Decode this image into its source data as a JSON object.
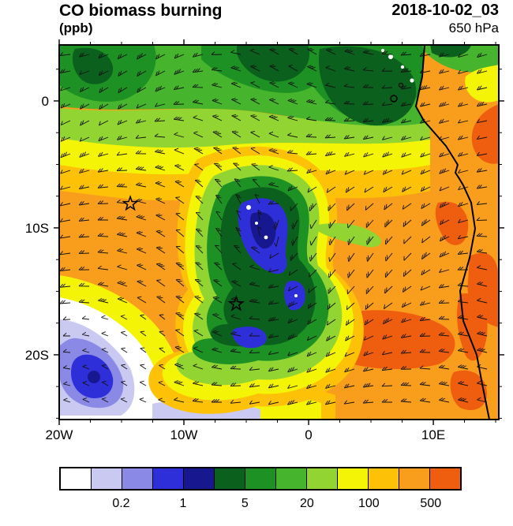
{
  "header": {
    "title": "CO biomass burning",
    "units": "(ppb)",
    "datetime": "2018-10-02_03",
    "level": "650 hPa"
  },
  "axes": {
    "x_ticks": [
      {
        "label": "20W",
        "lon": -20
      },
      {
        "label": "10W",
        "lon": -10
      },
      {
        "label": "0",
        "lon": 0
      },
      {
        "label": "10E",
        "lon": 10
      }
    ],
    "y_ticks": [
      {
        "label": "0",
        "lat": 0
      },
      {
        "label": "10S",
        "lat": -10
      },
      {
        "label": "20S",
        "lat": -20
      }
    ]
  },
  "colorbar": {
    "colors": [
      "#ffffff",
      "#c9c9f2",
      "#8a8ae6",
      "#2f2fd9",
      "#17178f",
      "#0b601d",
      "#1d9124",
      "#46b42c",
      "#92d532",
      "#f4f407",
      "#fdc108",
      "#f99d1c",
      "#ef5e0f"
    ],
    "labels": [
      "0.2",
      "1",
      "5",
      "20",
      "100",
      "500"
    ],
    "label_boundary_cells": [
      2,
      4,
      6,
      8,
      10,
      12
    ]
  },
  "chart_data": {
    "type": "filled_contour_map",
    "variable": "CO biomass burning",
    "units": "ppb",
    "level": "650 hPa",
    "time": "2018-10-02_03",
    "projection_extent": {
      "lon_min": -20,
      "lon_max": 15.25,
      "lat_min": -25.1,
      "lat_max": 4.41
    },
    "contour_levels": [
      0.1,
      0.2,
      0.5,
      1,
      2,
      5,
      10,
      20,
      50,
      100,
      200,
      500
    ],
    "labeled_levels": [
      0.2,
      1,
      5,
      20,
      100,
      500
    ],
    "palette": [
      "#ffffff",
      "#c9c9f2",
      "#8a8ae6",
      "#2f2fd9",
      "#17178f",
      "#0b601d",
      "#1d9124",
      "#46b42c",
      "#92d532",
      "#f4f407",
      "#fdc108",
      "#f99d1c",
      "#ef5e0f"
    ],
    "wind_barbs": true,
    "markers": [
      {
        "symbol": "star",
        "lon": -14.3,
        "lat": -8.1
      },
      {
        "symbol": "star",
        "lon": -5.8,
        "lat": -16.0
      }
    ],
    "field_summary": [
      {
        "region": "northern band 4N-3S",
        "range_ppb": "5-50",
        "desc": "greens with dark-green (2-5 ppb) patches near equator and Gulf of Guinea"
      },
      {
        "region": "central plume 4S-22S",
        "range_ppb": "100-500",
        "desc": "broad orange biomass-burning CO plume across the South Atlantic"
      },
      {
        "region": "hook-shaped clean slot near 4-9W, 8-18S",
        "range_ppb": "1-20",
        "desc": "cyclonic intrusion of clean air: dark green ring, blue/navy core, white flecks"
      },
      {
        "region": "southwest corner",
        "range_ppb": "<1-5",
        "desc": "clean air: white, lavender and blue minimum"
      },
      {
        "region": "Angola/Namibia coast 12-22S",
        "range_ppb": ">500",
        "desc": "red-orange maxima near and along the coast"
      }
    ]
  }
}
